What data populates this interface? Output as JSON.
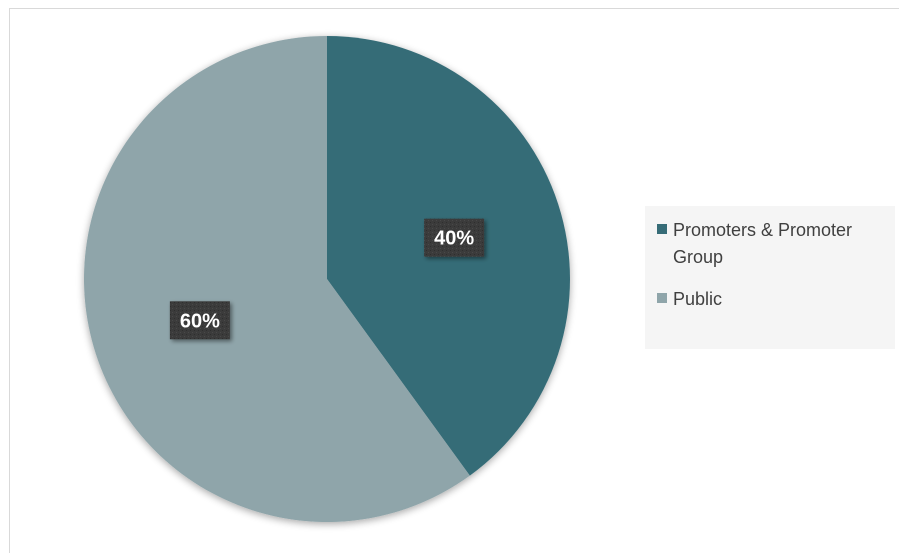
{
  "chart_data": {
    "type": "pie",
    "categories": [
      "Promoters & Promoter Group",
      "Public"
    ],
    "values": [
      40,
      60
    ],
    "data_labels": [
      "40%",
      "60%"
    ],
    "colors": [
      "#366c77",
      "#8fa5aa"
    ],
    "title": "",
    "legend_position": "right",
    "data_label_style": {
      "background": "#3a3a3a",
      "text_color": "#ffffff"
    }
  }
}
